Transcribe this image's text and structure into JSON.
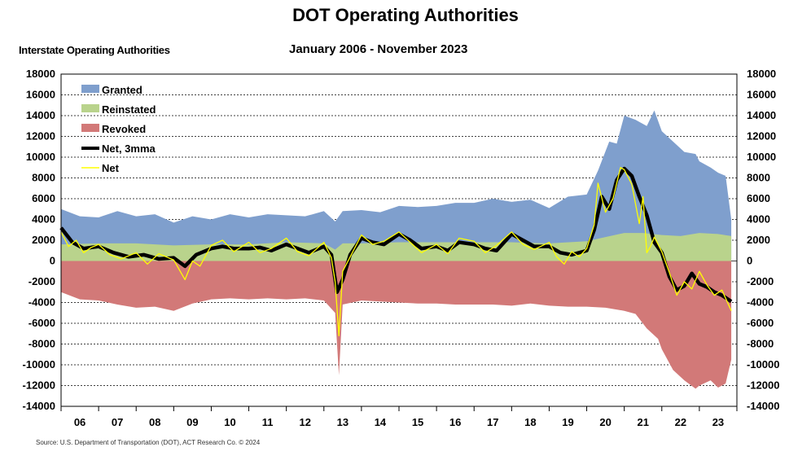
{
  "title": "DOT Operating Authorities",
  "left_label": "Interstate Operating Authorities",
  "subtitle": "January 2006 - November 2023",
  "source": "Source: U.S. Department of Transportation (DOT), ACT Research Co. © 2024",
  "chart_data": {
    "type": "area",
    "x_unit": "year (decimal)",
    "x_tick_labels": [
      "06",
      "07",
      "08",
      "09",
      "10",
      "11",
      "12",
      "13",
      "14",
      "15",
      "16",
      "17",
      "18",
      "19",
      "20",
      "21",
      "22",
      "23"
    ],
    "y_ticks_left": [
      "18000",
      "16000",
      "14000",
      "12000",
      "10000",
      "8000",
      "6000",
      "4000",
      "2000",
      "0",
      "-2000",
      "-4000",
      "-6000",
      "-8000",
      "-10000",
      "-12000",
      "-14000"
    ],
    "y_ticks_right": [
      "18000",
      "16000",
      "14000",
      "12000",
      "10000",
      "8000",
      "6000",
      "4000",
      "2000",
      "0",
      "-2000",
      "-4000",
      "-6000",
      "-8000",
      "-10000",
      "-12000",
      "-14000"
    ],
    "ylim": [
      -14000,
      18000
    ],
    "xlim": [
      2006,
      2024
    ],
    "legend": [
      "Granted",
      "Reinstated",
      "Revoked",
      "Net, 3mma",
      "Net"
    ],
    "colors": {
      "granted": "#7f9fcd",
      "reinstated": "#b9d38c",
      "revoked": "#d27978",
      "net3mma": "#000000",
      "net": "#ffff00"
    },
    "series": [
      {
        "name": "Granted",
        "x": [
          2006,
          2006.5,
          2007,
          2007.5,
          2008,
          2008.5,
          2009,
          2009.5,
          2010,
          2010.5,
          2011,
          2011.5,
          2012,
          2012.5,
          2013,
          2013.3,
          2013.5,
          2014,
          2014.5,
          2015,
          2015.5,
          2016,
          2016.5,
          2017,
          2017.5,
          2018,
          2018.5,
          2019,
          2019.5,
          2020,
          2020.3,
          2020.6,
          2020.8,
          2021,
          2021.3,
          2021.6,
          2021.8,
          2022,
          2022.3,
          2022.6,
          2022.9,
          2023,
          2023.3,
          2023.5,
          2023.7,
          2023.85
        ],
        "y": [
          5000,
          4300,
          4200,
          4800,
          4300,
          4500,
          3700,
          4300,
          4000,
          4500,
          4200,
          4500,
          4400,
          4300,
          4800,
          3800,
          4800,
          4900,
          4700,
          5300,
          5200,
          5300,
          5600,
          5600,
          6000,
          5700,
          5900,
          5100,
          6200,
          6400,
          8700,
          11500,
          11300,
          14000,
          13600,
          13000,
          14500,
          12500,
          11500,
          10500,
          10300,
          9600,
          9000,
          8500,
          8200,
          4000
        ]
      },
      {
        "name": "Reinstated",
        "x": [
          2006,
          2007,
          2008,
          2009,
          2010,
          2011,
          2012,
          2013,
          2013.3,
          2013.5,
          2014,
          2015,
          2016,
          2017,
          2018,
          2019,
          2020,
          2020.5,
          2021,
          2021.5,
          2022,
          2022.5,
          2023,
          2023.5,
          2023.85
        ],
        "y": [
          1600,
          1700,
          1700,
          1500,
          1600,
          1600,
          1800,
          1700,
          1100,
          1700,
          1700,
          1800,
          1800,
          1800,
          1800,
          1700,
          1900,
          2300,
          2700,
          2700,
          2500,
          2400,
          2700,
          2600,
          2400
        ]
      },
      {
        "name": "Revoked",
        "x": [
          2006,
          2006.5,
          2007,
          2007.5,
          2008,
          2008.5,
          2009,
          2009.5,
          2010,
          2010.5,
          2011,
          2011.5,
          2012,
          2012.5,
          2013,
          2013.3,
          2013.4,
          2013.5,
          2014,
          2014.5,
          2015,
          2015.5,
          2016,
          2016.5,
          2017,
          2017.5,
          2018,
          2018.5,
          2019,
          2019.5,
          2020,
          2020.5,
          2021,
          2021.3,
          2021.6,
          2021.9,
          2022,
          2022.3,
          2022.6,
          2022.9,
          2023,
          2023.3,
          2023.5,
          2023.7,
          2023.85
        ],
        "y": [
          -3000,
          -3700,
          -3800,
          -4200,
          -4500,
          -4400,
          -4800,
          -4100,
          -3700,
          -3600,
          -3700,
          -3600,
          -3700,
          -3600,
          -3800,
          -5000,
          -11000,
          -4200,
          -3800,
          -3900,
          -4000,
          -4100,
          -4100,
          -4200,
          -4200,
          -4200,
          -4300,
          -4100,
          -4300,
          -4400,
          -4400,
          -4500,
          -4800,
          -5100,
          -6500,
          -7500,
          -8500,
          -10500,
          -11500,
          -12300,
          -12000,
          -11500,
          -12200,
          -11800,
          -9500
        ]
      },
      {
        "name": "Net, 3mma",
        "x": [
          2006,
          2006.3,
          2006.6,
          2007,
          2007.4,
          2007.8,
          2008.2,
          2008.6,
          2009,
          2009.3,
          2009.6,
          2010,
          2010.3,
          2010.6,
          2011,
          2011.3,
          2011.6,
          2012,
          2012.3,
          2012.6,
          2013,
          2013.2,
          2013.35,
          2013.5,
          2013.7,
          2014,
          2014.3,
          2014.6,
          2015,
          2015.3,
          2015.6,
          2016,
          2016.3,
          2016.6,
          2017,
          2017.3,
          2017.6,
          2018,
          2018.3,
          2018.6,
          2019,
          2019.3,
          2019.6,
          2020,
          2020.2,
          2020.4,
          2020.6,
          2020.8,
          2021,
          2021.2,
          2021.4,
          2021.6,
          2021.8,
          2022,
          2022.2,
          2022.4,
          2022.6,
          2022.8,
          2023,
          2023.2,
          2023.4,
          2023.6,
          2023.85
        ],
        "y": [
          3200,
          1800,
          1200,
          1400,
          800,
          400,
          600,
          200,
          300,
          -500,
          600,
          1200,
          1400,
          1200,
          1200,
          1300,
          1000,
          1600,
          1200,
          800,
          1400,
          600,
          -3000,
          -1800,
          600,
          2200,
          1800,
          1600,
          2600,
          2000,
          1200,
          1400,
          1000,
          1800,
          1600,
          1200,
          1000,
          2600,
          2000,
          1400,
          1400,
          800,
          600,
          1000,
          3000,
          6200,
          5000,
          7800,
          8900,
          8200,
          6200,
          4400,
          1800,
          800,
          -1500,
          -2800,
          -2400,
          -1200,
          -2200,
          -2500,
          -3000,
          -3300,
          -3900
        ]
      },
      {
        "name": "Net",
        "x": [
          2006,
          2006.2,
          2006.4,
          2006.6,
          2006.8,
          2007,
          2007.3,
          2007.6,
          2008,
          2008.3,
          2008.6,
          2009,
          2009.3,
          2009.5,
          2009.7,
          2010,
          2010.3,
          2010.6,
          2011,
          2011.3,
          2011.6,
          2012,
          2012.3,
          2012.6,
          2013,
          2013.2,
          2013.3,
          2013.4,
          2013.5,
          2013.7,
          2014,
          2014.3,
          2014.6,
          2015,
          2015.3,
          2015.6,
          2016,
          2016.3,
          2016.6,
          2017,
          2017.3,
          2017.6,
          2018,
          2018.3,
          2018.6,
          2019,
          2019.2,
          2019.4,
          2019.6,
          2019.8,
          2020,
          2020.2,
          2020.3,
          2020.5,
          2020.7,
          2020.9,
          2021,
          2021.2,
          2021.4,
          2021.5,
          2021.6,
          2021.7,
          2021.8,
          2022,
          2022.2,
          2022.4,
          2022.6,
          2022.8,
          2023,
          2023.2,
          2023.4,
          2023.6,
          2023.85
        ],
        "y": [
          2800,
          1400,
          2000,
          800,
          1300,
          1600,
          600,
          200,
          800,
          -300,
          700,
          100,
          -1800,
          0,
          -500,
          1500,
          2000,
          900,
          1800,
          800,
          1200,
          2200,
          900,
          500,
          1800,
          300,
          -2000,
          -7200,
          -1000,
          400,
          2500,
          1600,
          1900,
          2800,
          1800,
          800,
          1600,
          700,
          2200,
          1900,
          800,
          1500,
          2800,
          1600,
          1100,
          1800,
          400,
          -300,
          900,
          400,
          1200,
          3500,
          7500,
          4700,
          6000,
          9000,
          8800,
          7400,
          3600,
          6200,
          800,
          1400,
          2300,
          900,
          -1100,
          -3300,
          -2000,
          -2700,
          -1000,
          -2300,
          -3300,
          -2800,
          -4800
        ]
      }
    ]
  }
}
